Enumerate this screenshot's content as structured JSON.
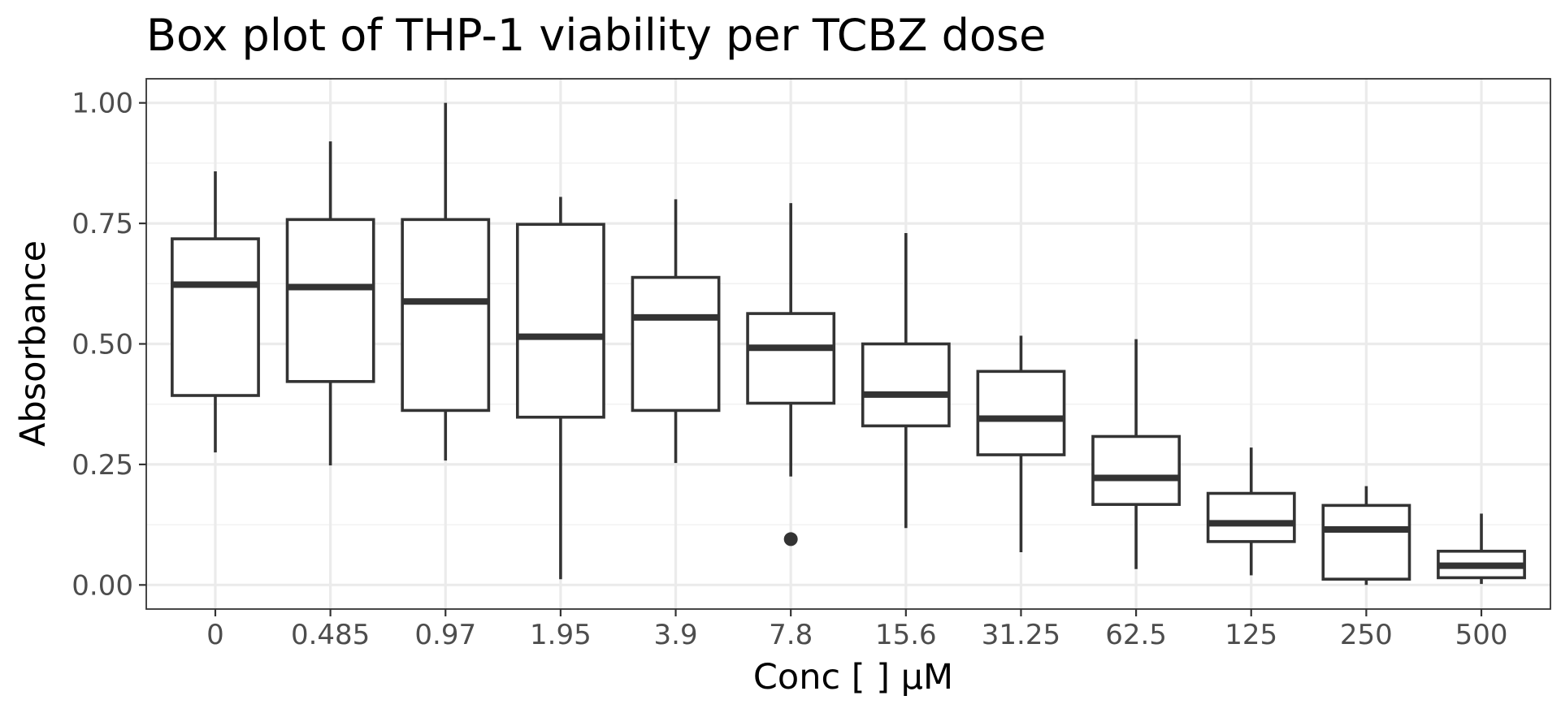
{
  "chart_data": {
    "type": "box",
    "title": "Box plot of THP-1 viability per TCBZ dose",
    "xlabel": "Conc [   ] µM",
    "ylabel": "Absorbance",
    "ylim": [
      -0.05,
      1.05
    ],
    "y_ticks": [
      0.0,
      0.25,
      0.5,
      0.75,
      1.0
    ],
    "y_tick_labels": [
      "0.00",
      "0.25",
      "0.50",
      "0.75",
      "1.00"
    ],
    "grid": true,
    "categories": [
      "0",
      "0.485",
      "0.97",
      "1.95",
      "3.9",
      "7.8",
      "15.6",
      "31.25",
      "62.5",
      "125",
      "250",
      "500"
    ],
    "boxes": [
      {
        "category": "0",
        "lower_whisker": 0.275,
        "q1": 0.393,
        "median": 0.623,
        "q3": 0.718,
        "upper_whisker": 0.858,
        "outliers": []
      },
      {
        "category": "0.485",
        "lower_whisker": 0.248,
        "q1": 0.422,
        "median": 0.618,
        "q3": 0.758,
        "upper_whisker": 0.92,
        "outliers": []
      },
      {
        "category": "0.97",
        "lower_whisker": 0.258,
        "q1": 0.362,
        "median": 0.588,
        "q3": 0.758,
        "upper_whisker": 1.0,
        "outliers": []
      },
      {
        "category": "1.95",
        "lower_whisker": 0.012,
        "q1": 0.348,
        "median": 0.515,
        "q3": 0.748,
        "upper_whisker": 0.805,
        "outliers": []
      },
      {
        "category": "3.9",
        "lower_whisker": 0.253,
        "q1": 0.362,
        "median": 0.555,
        "q3": 0.638,
        "upper_whisker": 0.8,
        "outliers": []
      },
      {
        "category": "7.8",
        "lower_whisker": 0.225,
        "q1": 0.377,
        "median": 0.492,
        "q3": 0.563,
        "upper_whisker": 0.792,
        "outliers": [
          0.095
        ]
      },
      {
        "category": "15.6",
        "lower_whisker": 0.118,
        "q1": 0.33,
        "median": 0.395,
        "q3": 0.5,
        "upper_whisker": 0.73,
        "outliers": []
      },
      {
        "category": "31.25",
        "lower_whisker": 0.068,
        "q1": 0.27,
        "median": 0.345,
        "q3": 0.443,
        "upper_whisker": 0.517,
        "outliers": []
      },
      {
        "category": "62.5",
        "lower_whisker": 0.033,
        "q1": 0.167,
        "median": 0.222,
        "q3": 0.308,
        "upper_whisker": 0.51,
        "outliers": []
      },
      {
        "category": "125",
        "lower_whisker": 0.02,
        "q1": 0.09,
        "median": 0.128,
        "q3": 0.19,
        "upper_whisker": 0.285,
        "outliers": []
      },
      {
        "category": "250",
        "lower_whisker": 0.0,
        "q1": 0.012,
        "median": 0.115,
        "q3": 0.165,
        "upper_whisker": 0.205,
        "outliers": []
      },
      {
        "category": "500",
        "lower_whisker": 0.002,
        "q1": 0.015,
        "median": 0.04,
        "q3": 0.07,
        "upper_whisker": 0.148,
        "outliers": []
      }
    ],
    "colors": {
      "line": "#333333",
      "fill": "#ffffff",
      "grid": "#ebebeb",
      "tick_text": "#4d4d4d"
    }
  }
}
